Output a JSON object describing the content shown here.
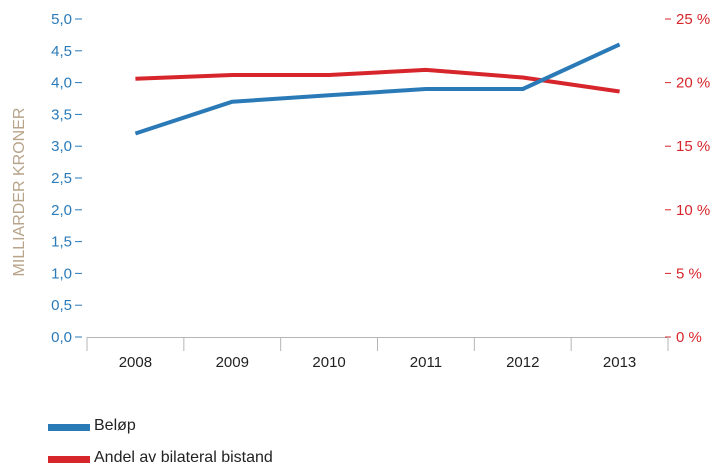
{
  "chart_data": {
    "type": "line",
    "categories": [
      "2008",
      "2009",
      "2010",
      "2011",
      "2012",
      "2013"
    ],
    "ylabel": "MILLIARDER KRONER",
    "y_left": {
      "range": [
        0,
        5
      ],
      "ticks": [
        "0,0",
        "0,5",
        "1,0",
        "1,5",
        "2,0",
        "2,5",
        "3,0",
        "3,5",
        "4,0",
        "4,5",
        "5,0"
      ],
      "color": "#2a7ab8"
    },
    "y_right": {
      "range": [
        0,
        25
      ],
      "ticks": [
        "0 %",
        "5 %",
        "10 %",
        "15 %",
        "20 %",
        "25 %"
      ],
      "color": "#d7262b"
    },
    "series": [
      {
        "name": "Beløp",
        "axis": "left",
        "color": "#2a7ab8",
        "values": [
          3.2,
          3.7,
          3.8,
          3.9,
          3.9,
          4.6
        ]
      },
      {
        "name": "Andel av bilateral bistand",
        "axis": "right",
        "color": "#d7262b",
        "values": [
          20.3,
          20.6,
          20.6,
          21.0,
          20.4,
          19.3
        ]
      }
    ],
    "grid": false,
    "legend_position": "bottom-left",
    "ylabel_color": "#b7a48a"
  }
}
